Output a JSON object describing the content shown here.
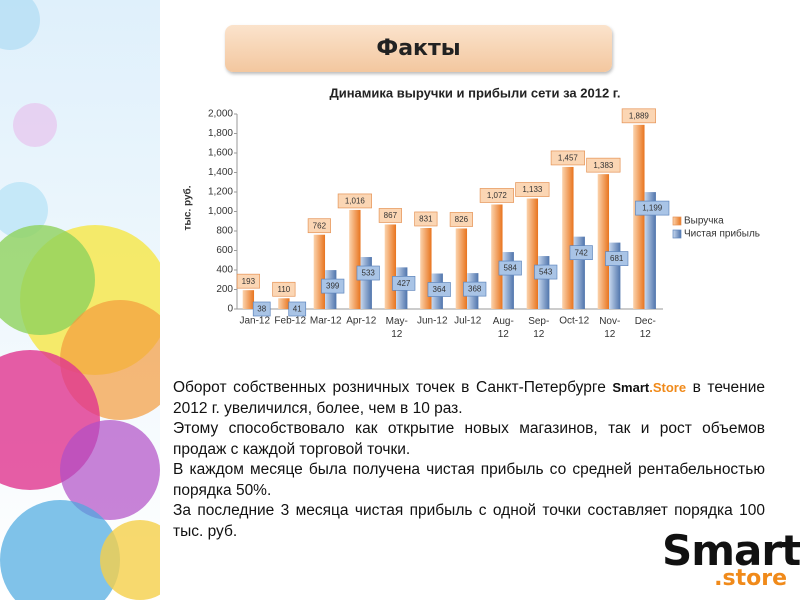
{
  "header": {
    "title": "Факты"
  },
  "chart_data": {
    "type": "bar",
    "title": "Динамика выручки и прибыли сети за 2012 г.",
    "y_label": "тыс. руб.",
    "categories": [
      "Jan-12",
      "Feb-12",
      "Mar-12",
      "Apr-12",
      "May-12",
      "Jun-12",
      "Jul-12",
      "Aug-12",
      "Sep-12",
      "Oct-12",
      "Nov-12",
      "Dec-12"
    ],
    "series": [
      {
        "name": "Выручка",
        "color": "#f0883a",
        "values": [
          193,
          110,
          762,
          1016,
          867,
          831,
          826,
          1072,
          1133,
          1457,
          1383,
          1889
        ],
        "value_labels": [
          "193",
          "110",
          "762",
          "1,016",
          "867",
          "831",
          "826",
          "1,072",
          "1,133",
          "1,457",
          "1,383",
          "1,889"
        ]
      },
      {
        "name": "Чистая прибыль",
        "color": "#6d8fc2",
        "values": [
          38,
          41,
          399,
          533,
          427,
          364,
          368,
          584,
          543,
          742,
          681,
          1199
        ],
        "value_labels": [
          "38",
          "41",
          "399",
          "533",
          "427",
          "364",
          "368",
          "584",
          "543",
          "742",
          "681",
          "1,199"
        ]
      }
    ],
    "ylim": [
      0,
      2000
    ],
    "yticks": [
      0,
      200,
      400,
      600,
      800,
      {
        "value": 1000,
        "label": "1,000"
      },
      {
        "value": 1200,
        "label": "1,200"
      },
      {
        "value": 1400,
        "label": "1,400"
      },
      {
        "value": 1600,
        "label": "1,600"
      },
      {
        "value": 1800,
        "label": "1,800"
      },
      {
        "value": 2000,
        "label": "2,000"
      }
    ],
    "legend": "right"
  },
  "body": {
    "paragraphs": [
      [
        "Оборот собственных розничных точек в Санкт-Петербурге ",
        "Smart",
        ".Store",
        " в течение 2012 г. увеличился, более, чем в 10 раз."
      ],
      [
        "Этому способствовало как открытие новых магазинов, так и рост объемов продаж с каждой торговой точки."
      ],
      [
        "В каждом месяце была получена чистая прибыль со средней рентабельностью порядка 50%."
      ],
      [
        "За последние 3 месяца чистая прибыль с одной точки составляет порядка 100 тыс. руб."
      ]
    ]
  },
  "logo": {
    "main": "Smart",
    "sub": ".store"
  }
}
